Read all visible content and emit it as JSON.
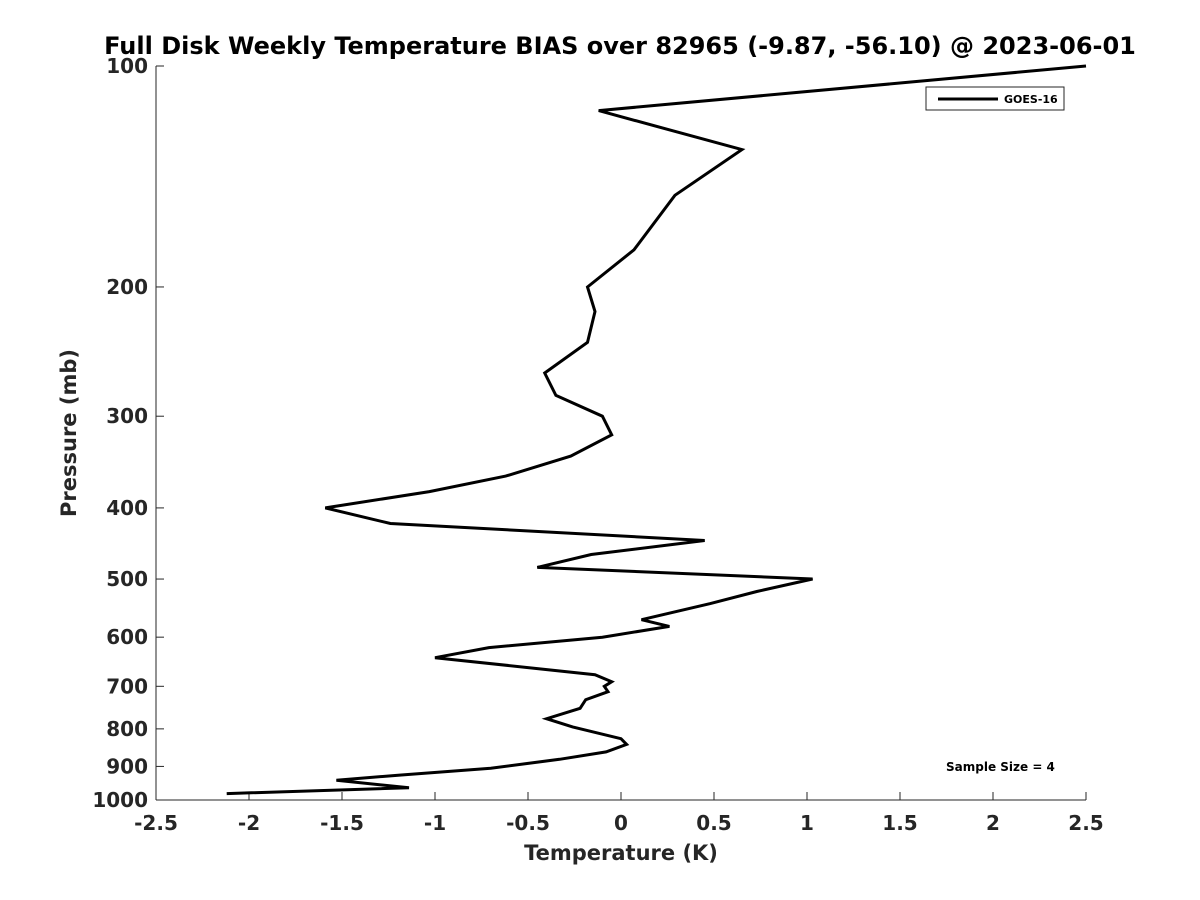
{
  "chart_data": {
    "type": "line",
    "title": "Full Disk Weekly Temperature BIAS over 82965 (-9.87, -56.10) @ 2023-06-01",
    "xlabel": "Temperature (K)",
    "ylabel": "Pressure (mb)",
    "xlim": [
      -2.5,
      2.5
    ],
    "ylim": [
      100,
      1000
    ],
    "y_scale": "log",
    "y_reversed": true,
    "grid": false,
    "legend_position": "top-right",
    "x_ticks": [
      -2.5,
      -2,
      -1.5,
      -1,
      -0.5,
      0,
      0.5,
      1,
      1.5,
      2,
      2.5
    ],
    "x_tick_labels": [
      "-2.5",
      "-2",
      "-1.5",
      "-1",
      "-0.5",
      "0",
      "0.5",
      "1",
      "1.5",
      "2",
      "2.5"
    ],
    "y_ticks": [
      100,
      200,
      300,
      400,
      500,
      600,
      700,
      800,
      900,
      1000
    ],
    "y_tick_labels": [
      "100",
      "200",
      "300",
      "400",
      "500",
      "600",
      "700",
      "800",
      "900",
      "1000"
    ],
    "annotation": "Sample Size = 4",
    "series": [
      {
        "name": "GOES-16",
        "color": "#000000",
        "points": [
          {
            "t": 2.5,
            "p": 100
          },
          {
            "t": -0.12,
            "p": 115
          },
          {
            "t": 0.65,
            "p": 130
          },
          {
            "t": 0.29,
            "p": 150
          },
          {
            "t": 0.07,
            "p": 178
          },
          {
            "t": -0.18,
            "p": 200
          },
          {
            "t": -0.14,
            "p": 216
          },
          {
            "t": -0.18,
            "p": 238
          },
          {
            "t": -0.41,
            "p": 262
          },
          {
            "t": -0.35,
            "p": 281
          },
          {
            "t": -0.1,
            "p": 300
          },
          {
            "t": -0.05,
            "p": 318
          },
          {
            "t": -0.27,
            "p": 340
          },
          {
            "t": -0.62,
            "p": 362
          },
          {
            "t": -1.03,
            "p": 380
          },
          {
            "t": -1.59,
            "p": 400
          },
          {
            "t": -1.24,
            "p": 420
          },
          {
            "t": 0.45,
            "p": 443
          },
          {
            "t": -0.16,
            "p": 463
          },
          {
            "t": -0.45,
            "p": 482
          },
          {
            "t": 1.03,
            "p": 500
          },
          {
            "t": 0.73,
            "p": 520
          },
          {
            "t": 0.48,
            "p": 540
          },
          {
            "t": 0.11,
            "p": 568
          },
          {
            "t": 0.26,
            "p": 580
          },
          {
            "t": -0.1,
            "p": 600
          },
          {
            "t": -0.71,
            "p": 620
          },
          {
            "t": -1.0,
            "p": 640
          },
          {
            "t": -0.14,
            "p": 675
          },
          {
            "t": -0.05,
            "p": 690
          },
          {
            "t": -0.09,
            "p": 700
          },
          {
            "t": -0.07,
            "p": 712
          },
          {
            "t": -0.19,
            "p": 730
          },
          {
            "t": -0.22,
            "p": 750
          },
          {
            "t": -0.4,
            "p": 775
          },
          {
            "t": -0.26,
            "p": 795
          },
          {
            "t": 0.0,
            "p": 825
          },
          {
            "t": 0.03,
            "p": 840
          },
          {
            "t": -0.08,
            "p": 860
          },
          {
            "t": -0.33,
            "p": 880
          },
          {
            "t": -0.7,
            "p": 905
          },
          {
            "t": -1.19,
            "p": 925
          },
          {
            "t": -1.53,
            "p": 940
          },
          {
            "t": -1.14,
            "p": 962
          },
          {
            "t": -2.12,
            "p": 980
          }
        ]
      }
    ]
  }
}
